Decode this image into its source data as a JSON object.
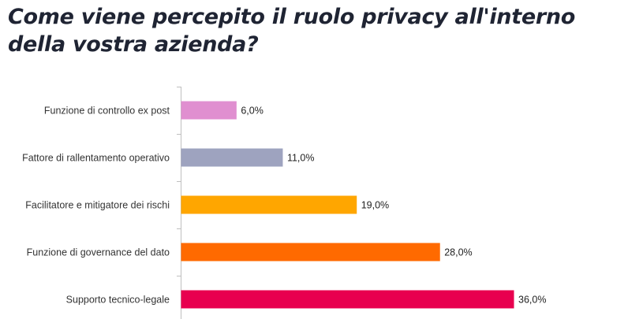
{
  "chart_data": {
    "type": "bar",
    "orientation": "horizontal",
    "title": "Come viene percepito il ruolo privacy all'interno della vostra azienda?",
    "categories": [
      "Funzione di controllo ex post",
      "Fattore di rallentamento operativo",
      "Facilitatore e mitigatore dei rischi",
      "Funzione di governance del dato",
      "Supporto tecnico-legale"
    ],
    "values": [
      6.0,
      11.0,
      19.0,
      28.0,
      36.0
    ],
    "value_labels": [
      "6,0%",
      "11,0%",
      "19,0%",
      "28,0%",
      "36,0%"
    ],
    "colors": [
      "#e08fd0",
      "#9ea3bf",
      "#ffa600",
      "#ff6a00",
      "#e8004f"
    ],
    "unit": "%",
    "xlim": [
      0,
      40
    ],
    "xlabel": "",
    "ylabel": "",
    "grid": false,
    "legend": "none"
  }
}
